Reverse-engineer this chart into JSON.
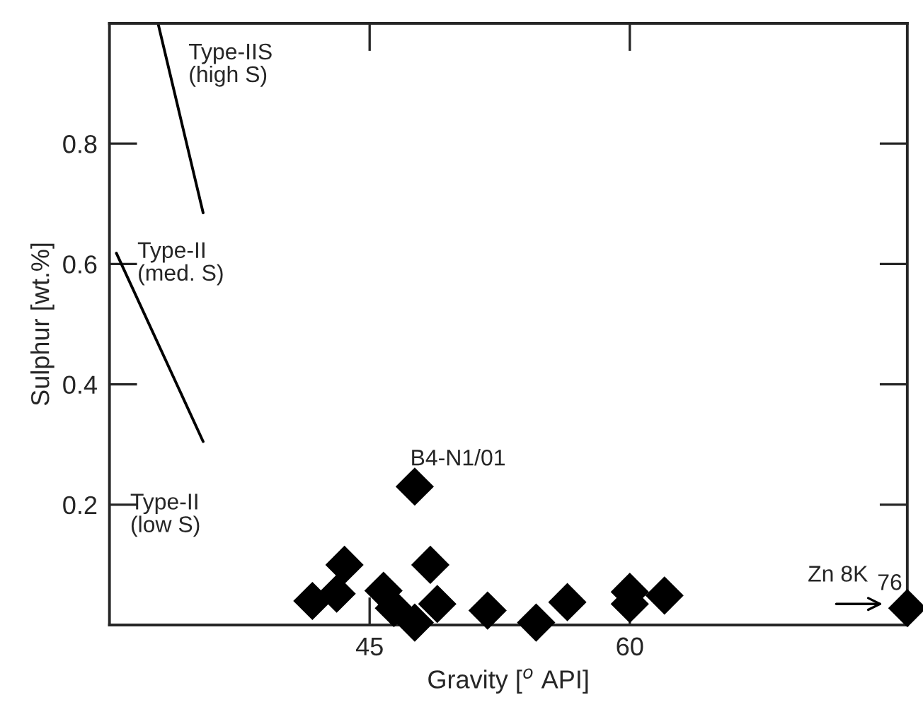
{
  "chart_data": {
    "type": "scatter",
    "xlabel": "Gravity [$^{o}$ API]",
    "ylabel": "Sulphur [wt.%]",
    "xlim": [
      30,
      76
    ],
    "ylim": [
      0,
      1
    ],
    "xticks": [
      45,
      60
    ],
    "yticks": [
      0.2,
      0.4,
      0.6,
      0.8
    ],
    "grid": false,
    "legend": false,
    "series": [
      {
        "marker": "diamond",
        "color": "#000000",
        "x": [
          47.6,
          43.55,
          41.7,
          43.1,
          45.8,
          46.4,
          47.6,
          48.5,
          48.9,
          51.8,
          54.6,
          56.4,
          60.0,
          60.0,
          62.0,
          76
        ],
        "values": [
          0.23,
          0.1,
          0.04,
          0.052,
          0.057,
          0.028,
          0.004,
          0.1,
          0.035,
          0.024,
          0.004,
          0.038,
          0.055,
          0.035,
          0.049,
          0.028
        ]
      },
      {
        "type": "line",
        "color": "#000000",
        "x": [
          32.8,
          35.4
        ],
        "values": [
          1.0,
          0.685
        ]
      },
      {
        "type": "line",
        "color": "#000000",
        "x": [
          30.4,
          35.4
        ],
        "values": [
          0.618,
          0.305
        ]
      }
    ],
    "annotations": [
      "Type-IIS\n(high S)",
      "Type-II\n(med. S)",
      "Type-II\n(low S)",
      "B4-N1/01",
      "Zn 8K",
      "76"
    ]
  }
}
